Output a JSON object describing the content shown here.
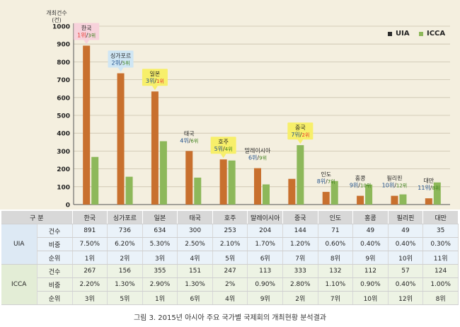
{
  "colors": {
    "uia": "#c8702e",
    "icca": "#8db85a",
    "uia_rank": "#e8352a",
    "icca_rank": "#3d7f1a"
  },
  "chart_data": {
    "type": "bar",
    "y_axis_title": "개최건수",
    "y_unit": "(건)",
    "ylim": [
      0,
      1000
    ],
    "yticks": [
      "0",
      "100",
      "200",
      "300",
      "400",
      "500",
      "600",
      "700",
      "800",
      "900",
      "1000"
    ],
    "categories": [
      "한국",
      "싱가포르",
      "일본",
      "태국",
      "호주",
      "말레이시아",
      "중국",
      "인도",
      "홍콩",
      "필리핀",
      "대만"
    ],
    "series": [
      {
        "name": "UIA",
        "values": [
          891,
          736,
          634,
          300,
          253,
          204,
          144,
          71,
          49,
          49,
          35
        ]
      },
      {
        "name": "ICCA",
        "values": [
          267,
          156,
          355,
          151,
          247,
          113,
          333,
          132,
          112,
          57,
          124
        ]
      }
    ],
    "annotations": [
      {
        "name": "한국",
        "uia_rank": "1위",
        "icca_rank": "3위",
        "style": "pink",
        "highlight": "uia"
      },
      {
        "name": "싱가포르",
        "uia_rank": "2위",
        "icca_rank": "5위",
        "style": "blue",
        "highlight": ""
      },
      {
        "name": "일본",
        "uia_rank": "3위",
        "icca_rank": "1위",
        "style": "yellow",
        "highlight": "icca"
      },
      {
        "name": "태국",
        "uia_rank": "4위",
        "icca_rank": "6위",
        "style": "none",
        "highlight": ""
      },
      {
        "name": "호주",
        "uia_rank": "5위",
        "icca_rank": "4위",
        "style": "yellow",
        "highlight": ""
      },
      {
        "name": "말레이시아",
        "uia_rank": "6위",
        "icca_rank": "9위",
        "style": "none",
        "highlight": ""
      },
      {
        "name": "중국",
        "uia_rank": "7위",
        "icca_rank": "2위",
        "style": "yellow",
        "highlight": "icca"
      },
      {
        "name": "인도",
        "uia_rank": "8위",
        "icca_rank": "7위",
        "style": "none",
        "highlight": ""
      },
      {
        "name": "홍콩",
        "uia_rank": "9위",
        "icca_rank": "10위",
        "style": "none",
        "highlight": ""
      },
      {
        "name": "필리핀",
        "uia_rank": "10위",
        "icca_rank": "12위",
        "style": "none",
        "highlight": ""
      },
      {
        "name": "대만",
        "uia_rank": "11위",
        "icca_rank": "8위",
        "style": "none",
        "highlight": ""
      }
    ]
  },
  "legend": {
    "uia": "UIA",
    "icca": "ICCA"
  },
  "table": {
    "header_label": "구 분",
    "columns": [
      "한국",
      "싱가포르",
      "일본",
      "태국",
      "호주",
      "말레이시아",
      "중국",
      "인도",
      "홍콩",
      "필리핀",
      "대만"
    ],
    "groups": [
      {
        "name": "UIA",
        "class": "uia-row",
        "rows": [
          {
            "label": "건수",
            "values": [
              "891",
              "736",
              "634",
              "300",
              "253",
              "204",
              "144",
              "71",
              "49",
              "49",
              "35"
            ]
          },
          {
            "label": "비중",
            "values": [
              "7.50%",
              "6.20%",
              "5.30%",
              "2.50%",
              "2.10%",
              "1.70%",
              "1.20%",
              "0.60%",
              "0.40%",
              "0.40%",
              "0.30%"
            ]
          },
          {
            "label": "순위",
            "values": [
              "1위",
              "2위",
              "3위",
              "4위",
              "5위",
              "6위",
              "7위",
              "8위",
              "9위",
              "10위",
              "11위"
            ]
          }
        ]
      },
      {
        "name": "ICCA",
        "class": "icca-row",
        "rows": [
          {
            "label": "건수",
            "values": [
              "267",
              "156",
              "355",
              "151",
              "247",
              "113",
              "333",
              "132",
              "112",
              "57",
              "124"
            ]
          },
          {
            "label": "비중",
            "values": [
              "2.20%",
              "1.30%",
              "2.90%",
              "1.30%",
              "2%",
              "0.90%",
              "2.80%",
              "1.10%",
              "0.90%",
              "0.40%",
              "1.00%"
            ]
          },
          {
            "label": "순위",
            "values": [
              "3위",
              "5위",
              "1위",
              "6위",
              "4위",
              "9위",
              "2위",
              "7위",
              "10위",
              "12위",
              "8위"
            ]
          }
        ]
      }
    ]
  },
  "caption": "그림 3. 2015년 아시아 주요 국가별 국제회의 개최현황 분석결과"
}
